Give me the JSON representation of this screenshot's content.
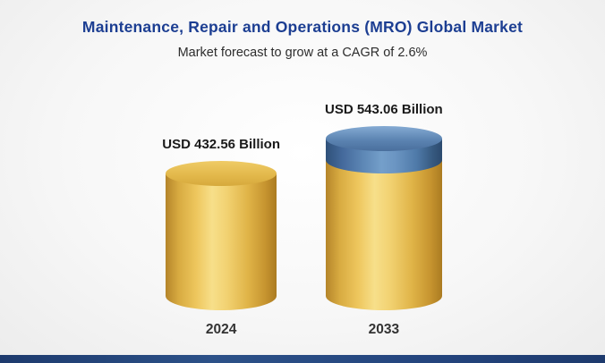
{
  "header": {
    "title": "Maintenance, Repair and Operations (MRO) Global Market",
    "subtitle": "Market forecast to grow at a CAGR of 2.6%"
  },
  "chart_data": {
    "type": "bar",
    "style": "3d-cylinder",
    "title": "Maintenance, Repair and Operations (MRO) Global Market",
    "subtitle": "Market forecast to grow at a CAGR of 2.6%",
    "categories": [
      "2024",
      "2033"
    ],
    "values": [
      432.56,
      543.06
    ],
    "unit": "USD Billion",
    "cagr_percent": 2.6,
    "bars": [
      {
        "category": "2024",
        "value": 432.56,
        "label": "USD 432.56 Billion",
        "color": "#E2B64A"
      },
      {
        "category": "2033",
        "value": 543.06,
        "label": "USD 543.06 Billion",
        "color": "#E2B64A",
        "growth_segment_value": 110.5,
        "growth_segment_color": "#4A74A6"
      }
    ],
    "colors": {
      "gold": "#E2B64A",
      "blue": "#4A74A6",
      "title_blue": "#1C3E92",
      "footer_bar": "#24457E"
    },
    "legend": "none",
    "grid": false,
    "ylim": [
      0,
      543.06
    ]
  }
}
